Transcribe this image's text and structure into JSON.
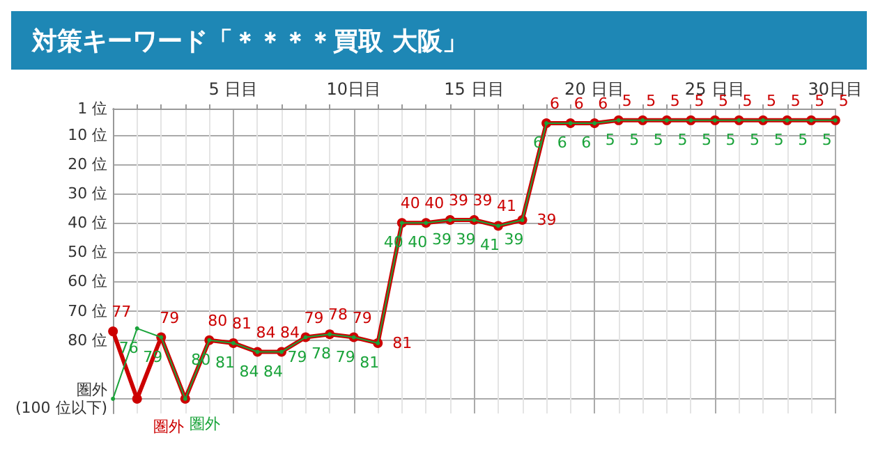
{
  "chart_data": {
    "type": "line",
    "title": "対策キーワード「＊＊＊＊買取 大阪」",
    "x": [
      0,
      1,
      2,
      3,
      4,
      5,
      6,
      7,
      8,
      9,
      10,
      11,
      12,
      13,
      14,
      15,
      16,
      17,
      18,
      19,
      20,
      21,
      22,
      23,
      24,
      25,
      26,
      27,
      28,
      29,
      30
    ],
    "xlim": [
      0,
      30
    ],
    "xticks": [
      {
        "value": 5,
        "label": "5 日目"
      },
      {
        "value": 10,
        "label": "10日目"
      },
      {
        "value": 15,
        "label": "15 日目"
      },
      {
        "value": 20,
        "label": "20 日目"
      },
      {
        "value": 25,
        "label": "25 日目"
      },
      {
        "value": 30,
        "label": "30日目"
      }
    ],
    "ylim": [
      105,
      1
    ],
    "yticks": [
      {
        "value": 1,
        "label": "1 位"
      },
      {
        "value": 10,
        "label": "10 位"
      },
      {
        "value": 20,
        "label": "20 位"
      },
      {
        "value": 30,
        "label": "30 位"
      },
      {
        "value": 40,
        "label": "40 位"
      },
      {
        "value": 50,
        "label": "50 位"
      },
      {
        "value": 60,
        "label": "60 位"
      },
      {
        "value": 70,
        "label": "70 位"
      },
      {
        "value": 80,
        "label": "80 位"
      },
      {
        "value": 100,
        "label": "圏外\n(100 位以下)"
      }
    ],
    "series": [
      {
        "color": "#cc0000",
        "values": [
          77,
          100,
          79,
          100,
          80,
          81,
          84,
          84,
          79,
          78,
          79,
          81,
          40,
          40,
          39,
          39,
          41,
          39,
          6,
          6,
          6,
          5,
          5,
          5,
          5,
          5,
          5,
          5,
          5,
          5,
          5
        ],
        "value_labels": [
          "77",
          null,
          "79",
          "圏外",
          "80",
          "81",
          "84",
          "84",
          "79",
          "78",
          "79",
          "81",
          "40",
          "40",
          "39",
          "39",
          "41",
          "39",
          "6",
          "6",
          "6",
          "5",
          "5",
          "5",
          "5",
          "5",
          "5",
          "5",
          "5",
          "5",
          "5"
        ]
      },
      {
        "color": "#1aa33a",
        "values": [
          100,
          76,
          79,
          100,
          80,
          81,
          84,
          84,
          79,
          78,
          79,
          81,
          40,
          40,
          39,
          39,
          41,
          39,
          6,
          6,
          6,
          5,
          5,
          5,
          5,
          5,
          5,
          5,
          5,
          5,
          5
        ],
        "value_labels": [
          null,
          "76",
          "79",
          "圏外",
          "80",
          "81",
          "84",
          "84",
          "79",
          "78",
          "79",
          "81",
          "40",
          "40",
          "39",
          "39",
          "41",
          "39",
          "6",
          "6",
          "6",
          "5",
          "5",
          "5",
          "5",
          "5",
          "5",
          "5",
          "5",
          "5",
          "5"
        ]
      }
    ],
    "marker": "circle",
    "line_style": "solid",
    "grid": true
  }
}
